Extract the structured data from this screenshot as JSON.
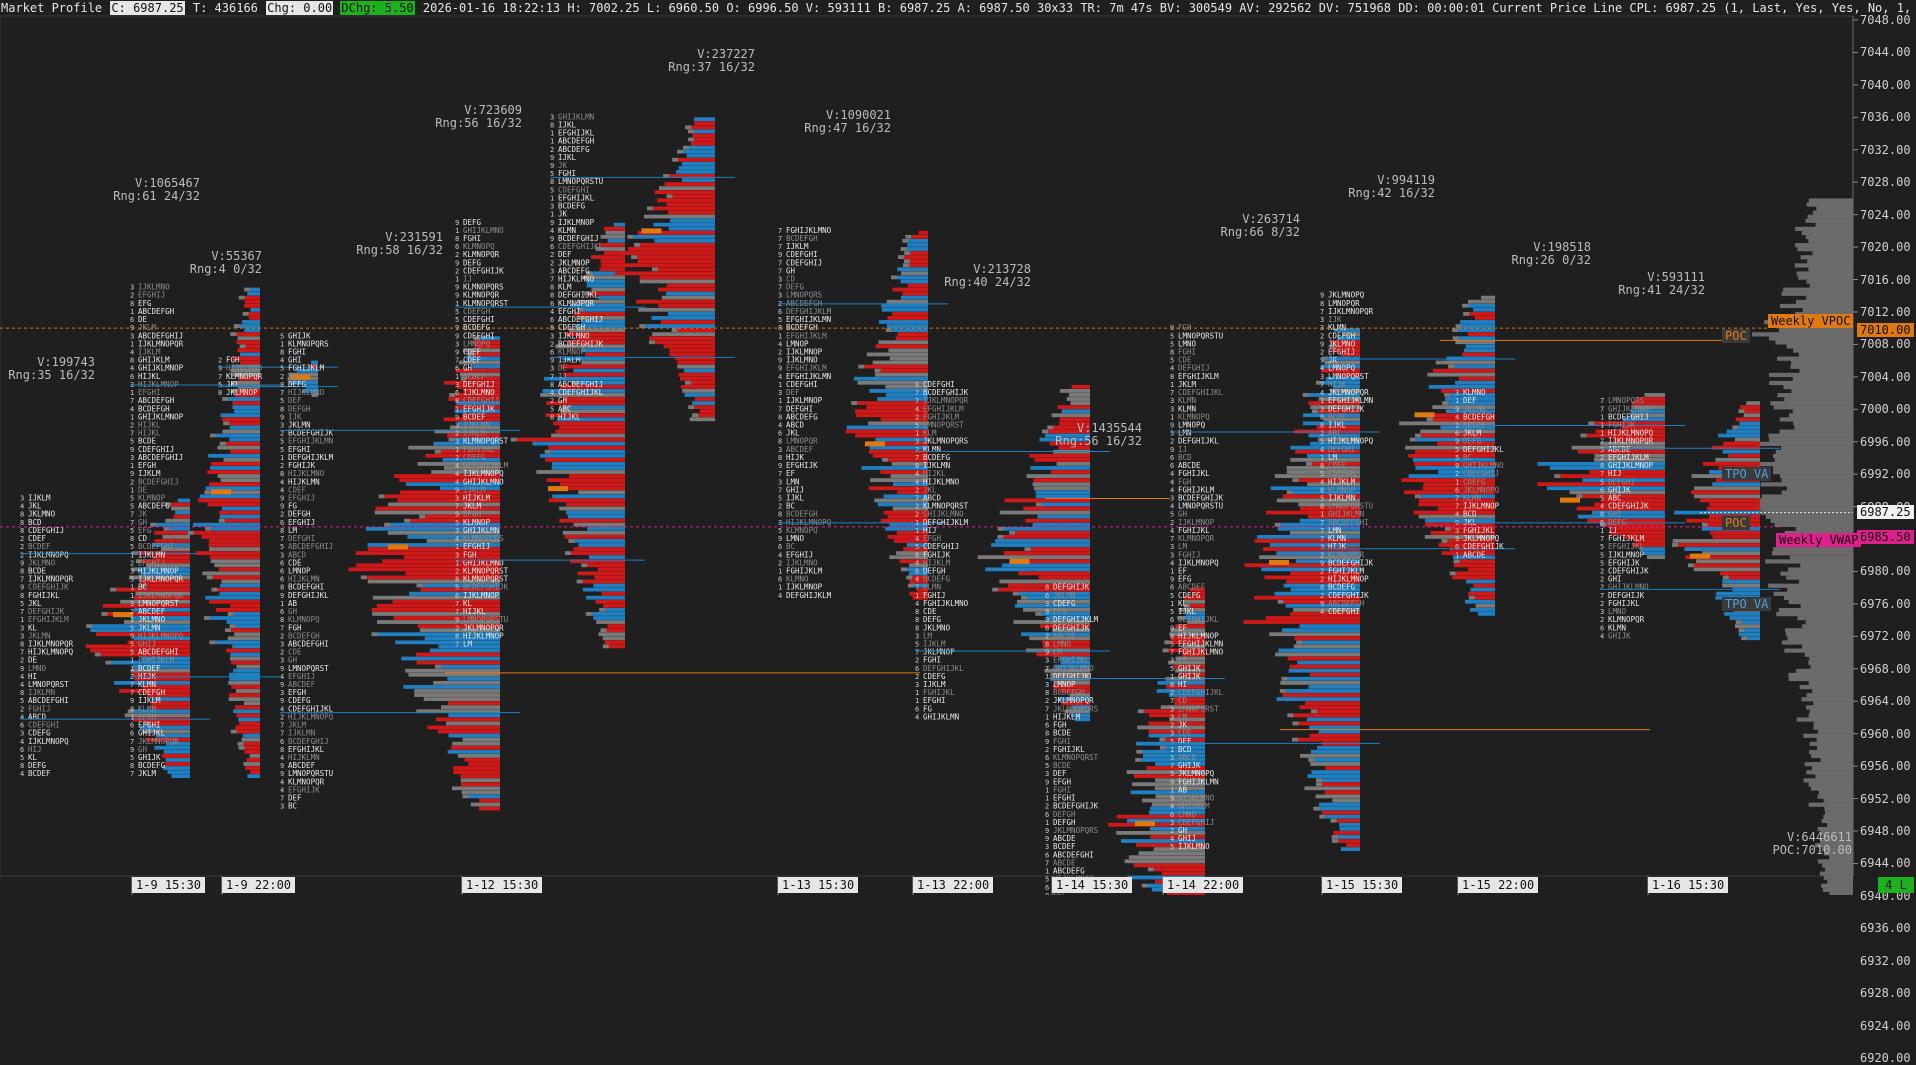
{
  "header": {
    "title": "Market Profile",
    "close": "C: 6987.25",
    "ticks": "T: 436166",
    "chg": "Chg: 0.00",
    "dchg": "DChg: 5.50",
    "rest": "2026-01-16 18:22:13 H: 7002.25 L: 6960.50 O: 6996.50 V: 593111 B: 6987.25 A: 6987.50 30x33 TR: 7m 47s BV: 300549 AV: 292562 DV: 751968 DD: 00:00:01 Current Price Line  CPL: 6987.25  (1, Last, Yes, Yes, No, 1, 1"
  },
  "axis": {
    "ticks": [
      "7048.00",
      "7044.00",
      "7040.00",
      "7036.00",
      "7032.00",
      "7028.00",
      "7024.00",
      "7020.00",
      "7016.00",
      "7012.00",
      "7008.00",
      "7004.00",
      "7000.00",
      "6996.00",
      "6992.00",
      "6988.00",
      "6984.00",
      "6980.00",
      "6976.00",
      "6972.00",
      "6968.00",
      "6964.00",
      "6960.00",
      "6956.00",
      "6952.00",
      "6948.00",
      "6944.00",
      "6940.00",
      "6936.00",
      "6932.00",
      "6928.00",
      "6924.00",
      "6920.00"
    ],
    "current_price": "6987.25",
    "weekly_vpoc_price": "7010.00",
    "pink_label": "6985.50"
  },
  "time_labels": [
    "1-9  15:30",
    "1-9  22:00",
    "1-12  15:30",
    "1-13  15:30",
    "1-13  22:00",
    "1-14  15:30",
    "1-14  22:00",
    "1-15  15:30",
    "1-15  22:00",
    "1-16  15:30"
  ],
  "profiles": [
    {
      "vol": "V:199743",
      "rng": "Rng:35 16/32"
    },
    {
      "vol": "V:1065467",
      "rng": "Rng:61 24/32"
    },
    {
      "vol": "V:55367",
      "rng": "Rng:4 0/32"
    },
    {
      "vol": "V:231591",
      "rng": "Rng:58 16/32"
    },
    {
      "vol": "V:723609",
      "rng": "Rng:56 16/32"
    },
    {
      "vol": "V:237227",
      "rng": "Rng:37 16/32"
    },
    {
      "vol": "V:1090021",
      "rng": "Rng:47 16/32"
    },
    {
      "vol": "V:213728",
      "rng": "Rng:40 24/32"
    },
    {
      "vol": "V:1435544",
      "rng": "Rng:56 16/32"
    },
    {
      "vol": "V:263714",
      "rng": "Rng:66 8/32"
    },
    {
      "vol": "V:994119",
      "rng": "Rng:42 16/32"
    },
    {
      "vol": "V:198518",
      "rng": "Rng:26 0/32"
    },
    {
      "vol": "V:593111",
      "rng": "Rng:41 24/32"
    }
  ],
  "labels": {
    "weekly_vpoc": "Weekly VPOC",
    "weekly_vwap": "Weekly VWAP",
    "poc": "POC",
    "tpo_va": "TPO VA",
    "total_vol": "V:6446611",
    "total_poc": "POC:7010.00",
    "live": "4 L"
  },
  "colors": {
    "bg": "#1f1f1f",
    "bid": "#d01818",
    "ask": "#1f7fc0",
    "neutral": "#7a7a7a",
    "poc": "#e07a10",
    "weekly_vwap": "#e0208a",
    "green": "#1db11d"
  }
}
